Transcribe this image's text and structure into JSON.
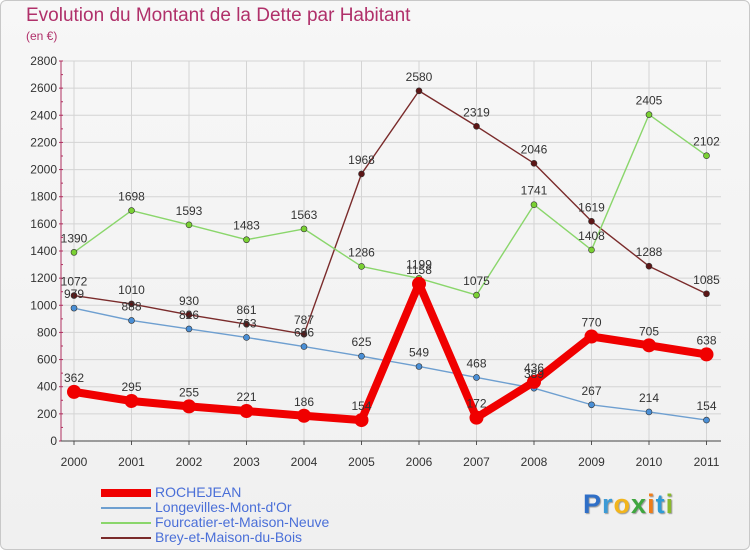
{
  "title": "Evolution du Montant de la Dette par Habitant",
  "subtitle": "(en €)",
  "logo": {
    "text": "Proxiti",
    "letter_colors": [
      "#2f6fc7",
      "#3d9bd6",
      "#f2b51c",
      "#3fa63f",
      "#ef7d1a",
      "#2f9bd6",
      "#8ab92d"
    ]
  },
  "chart_data": {
    "type": "line",
    "title": "Evolution du Montant de la Dette par Habitant",
    "subtitle": "(en €)",
    "xlabel": "",
    "ylabel": "",
    "ylim": [
      0,
      2800
    ],
    "yticks": [
      0,
      200,
      400,
      600,
      800,
      1000,
      1200,
      1400,
      1600,
      1800,
      2000,
      2200,
      2400,
      2600,
      2800
    ],
    "categories": [
      "2000",
      "2001",
      "2002",
      "2003",
      "2004",
      "2005",
      "2006",
      "2007",
      "2008",
      "2009",
      "2010",
      "2011"
    ],
    "grid": true,
    "legend_position": "bottom-left",
    "series": [
      {
        "name": "Brey-et-Maison-du-Bois",
        "color": "#7a2b2b",
        "marker_color": "#5c1616",
        "values": [
          1072,
          1010,
          930,
          861,
          787,
          1968,
          2580,
          2319,
          2046,
          1619,
          1288,
          1085
        ],
        "labels": [
          "1072",
          "1010",
          "930",
          "861",
          "787",
          "1968",
          "2580",
          "2319",
          "2046",
          "1619",
          "1288",
          "1085"
        ]
      },
      {
        "name": "Fourcatier-et-Maison-Neuve",
        "color": "#8ad66b",
        "marker_color": "#7ad133",
        "values": [
          1390,
          1698,
          1593,
          1483,
          1563,
          1286,
          1199,
          1075,
          1741,
          1408,
          2405,
          2102
        ],
        "labels": [
          "1390",
          "1698",
          "1593",
          "1483",
          "1563",
          "1286",
          "1199",
          "1075",
          "1741",
          "1408",
          "2405",
          "2102"
        ]
      },
      {
        "name": "Longevilles-Mont-d'Or",
        "color": "#6e9fd0",
        "marker_color": "#4a8fd6",
        "values": [
          979,
          888,
          826,
          763,
          696,
          625,
          549,
          468,
          389,
          267,
          214,
          154
        ],
        "labels": [
          "979",
          "888",
          "826",
          "763",
          "696",
          "625",
          "549",
          "468",
          "389",
          "267",
          "214",
          "154"
        ]
      },
      {
        "name": "ROCHEJEAN",
        "color": "#f00000",
        "marker_color": "#f00000",
        "values": [
          362,
          295,
          255,
          221,
          186,
          154,
          1158,
          172,
          436,
          770,
          705,
          638
        ],
        "labels": [
          "362",
          "295",
          "255",
          "221",
          "186",
          "154",
          "1158",
          "172",
          "436",
          "770",
          "705",
          "638"
        ]
      }
    ],
    "legend": [
      "ROCHEJEAN",
      "Longevilles-Mont-d'Or",
      "Fourcatier-et-Maison-Neuve",
      "Brey-et-Maison-du-Bois"
    ]
  }
}
